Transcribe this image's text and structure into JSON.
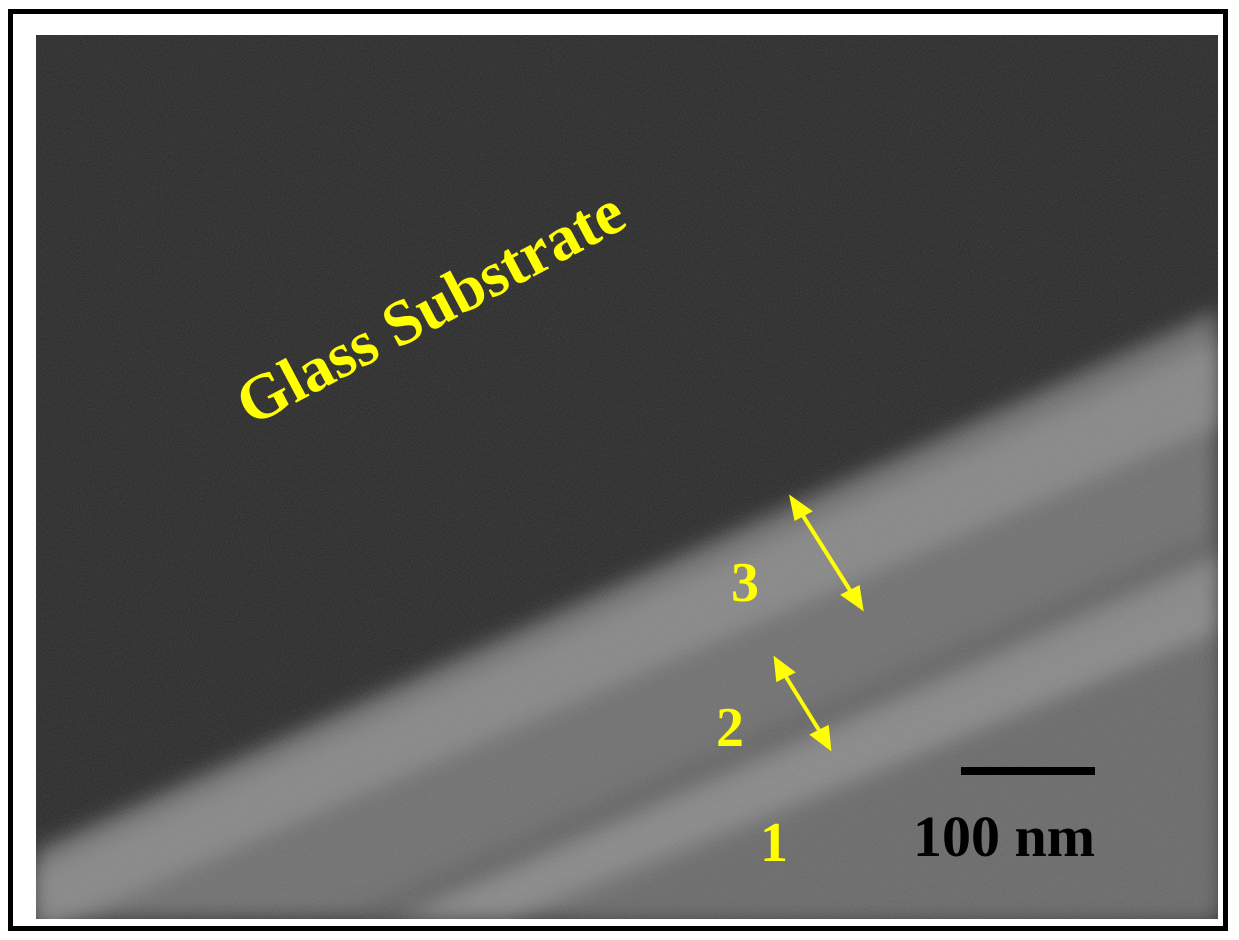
{
  "micrograph": {
    "substrate_label": "Glass Substrate",
    "layer_labels": {
      "layer_1": "1",
      "layer_2": "2",
      "layer_3": "3"
    },
    "scale_bar_label": "100 nm"
  },
  "colors": {
    "annotation": "#ffff00",
    "scale_bar": "#000000",
    "frame": "#000000",
    "substrate_background": "#262626",
    "film_band": "#8a8a8a"
  }
}
